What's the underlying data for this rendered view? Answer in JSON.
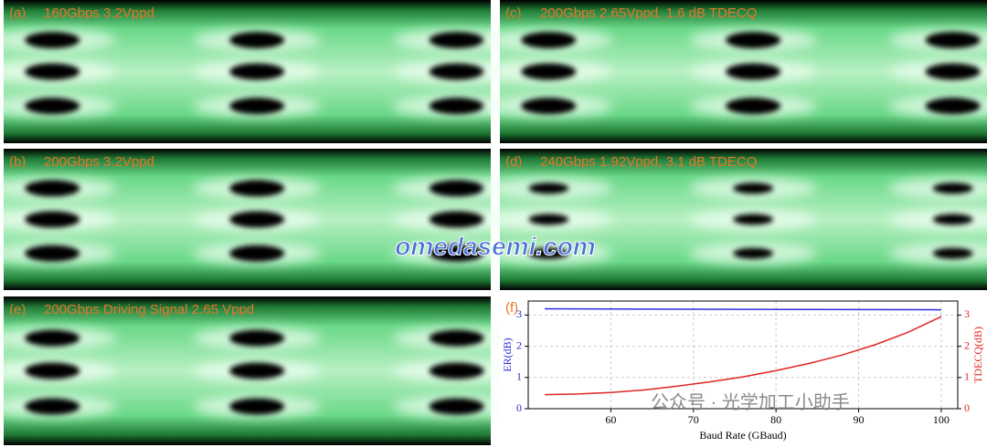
{
  "panels": [
    {
      "label": "(a)",
      "caption": "160Gbps 3.2Vppd"
    },
    {
      "label": "(c)",
      "caption": "200Gbps 2.65Vppd, 1.6 dB TDECQ"
    },
    {
      "label": "(b)",
      "caption": "200Gbps 3.2Vppd"
    },
    {
      "label": "(d)",
      "caption": "240Gbps 1.92Vppd, 3.1 dB TDECQ"
    },
    {
      "label": "(e)",
      "caption": "200Gbps Driving Signal 2.65 Vppd"
    }
  ],
  "watermarks": [
    "omedasemi.com",
    "公众号 · 光学加工小助手"
  ],
  "chart_data": {
    "type": "line",
    "label": "(f)",
    "x_label": "Baud Rate (GBaud)",
    "y_label": "ER(dB)",
    "y2_label": "TDECQ(dB)",
    "xlim": [
      50,
      102
    ],
    "xticks": [
      60,
      70,
      80,
      90,
      100
    ],
    "ylim": [
      0,
      3.45
    ],
    "yticks": [
      0,
      1,
      2,
      3
    ],
    "y2lim": [
      0,
      3.45
    ],
    "y2ticks": [
      0,
      1,
      2,
      3
    ],
    "grid": true,
    "series": [
      {
        "name": "ER",
        "color": "#2b2bdc",
        "x": [
          52,
          100
        ],
        "values": [
          3.2,
          3.17
        ]
      },
      {
        "name": "TDECQ",
        "color": "#e02424",
        "axis": "y2",
        "x": [
          52,
          56,
          60,
          64,
          68,
          72,
          76,
          80,
          84,
          88,
          92,
          96,
          100
        ],
        "values": [
          0.45,
          0.47,
          0.52,
          0.6,
          0.72,
          0.86,
          1.02,
          1.22,
          1.45,
          1.72,
          2.05,
          2.45,
          2.95
        ]
      }
    ]
  }
}
